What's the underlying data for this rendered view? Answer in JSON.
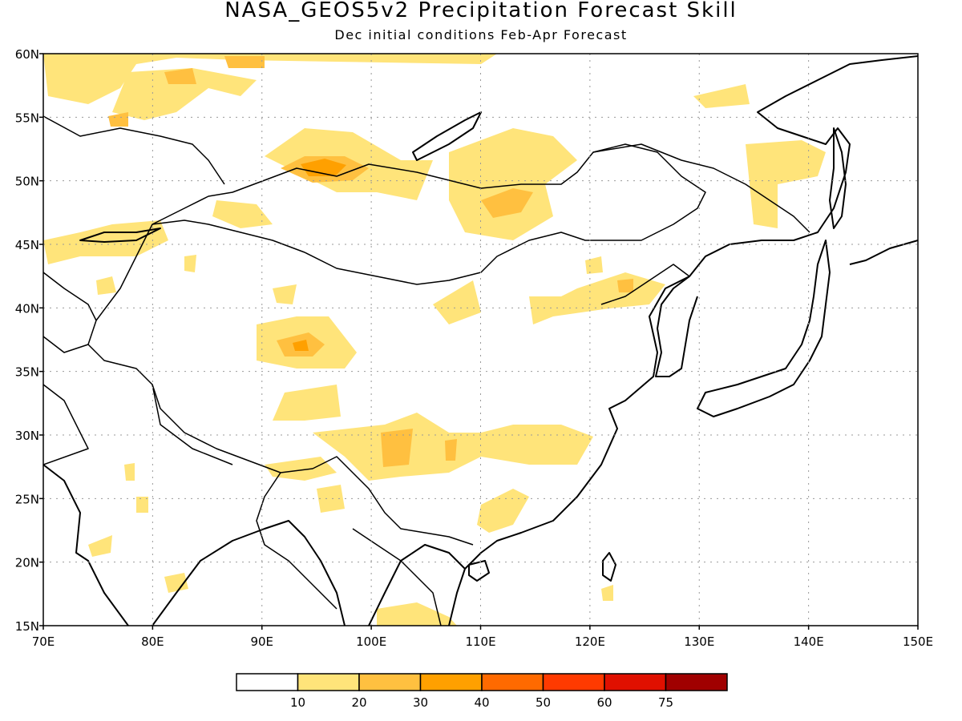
{
  "title": "NASA_GEOS5v2 Precipitation Forecast Skill",
  "subtitle": "Dec initial conditions  Feb-Apr Forecast",
  "map": {
    "lon_range": [
      70,
      150
    ],
    "lat_range": [
      15,
      60
    ],
    "lon_ticks": [
      "70E",
      "80E",
      "90E",
      "100E",
      "110E",
      "120E",
      "130E",
      "140E",
      "150E"
    ],
    "lat_ticks": [
      "60N",
      "55N",
      "50N",
      "45N",
      "40N",
      "35N",
      "30N",
      "25N",
      "20N",
      "15N"
    ],
    "grid": "dotted"
  },
  "colorbar": {
    "colors": [
      "#ffffff",
      "#ffe47a",
      "#ffc040",
      "#ffa000",
      "#ff6a00",
      "#ff3a00",
      "#e01000",
      "#a00000"
    ],
    "labels": [
      "10",
      "20",
      "30",
      "40",
      "50",
      "60",
      "75"
    ]
  }
}
